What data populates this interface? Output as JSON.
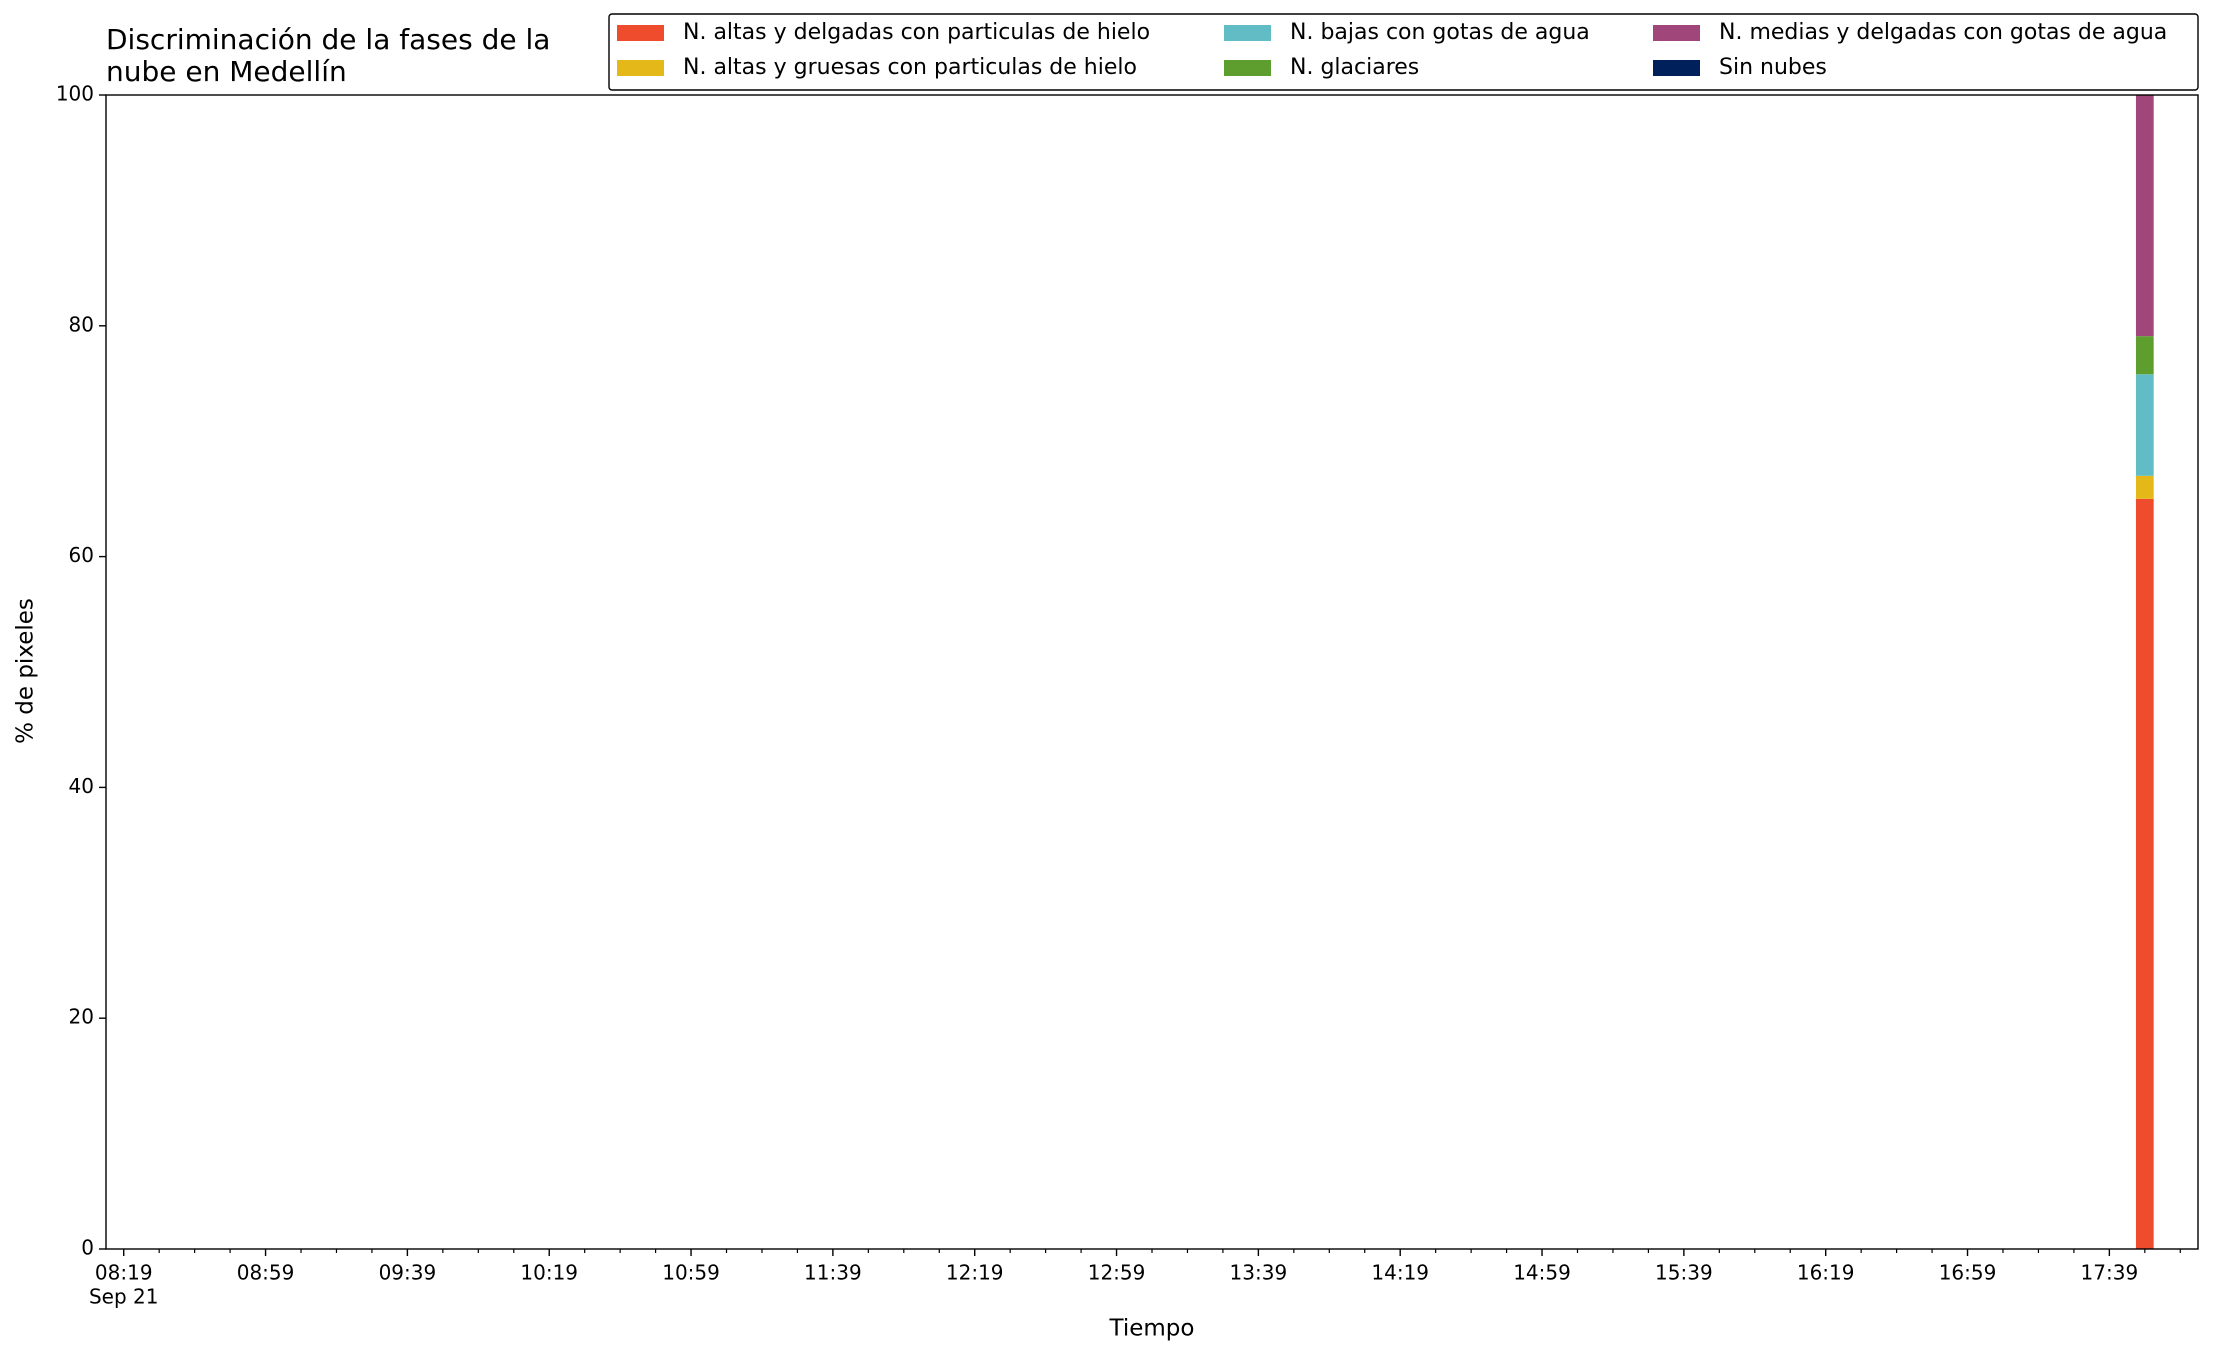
{
  "chart_data": {
    "type": "stacked_bar",
    "title": [
      "Discriminación de la fases de la",
      "nube en Medellín"
    ],
    "x_label": "Tiempo",
    "y_label": "% de pixeles",
    "x": [
      "17:49"
    ],
    "series": [
      {
        "name": "N. altas y delgadas con particulas de hielo",
        "color": "#ee4c2c",
        "values": [
          65
        ]
      },
      {
        "name": "N. altas y gruesas con particulas de hielo",
        "color": "#e5b81a",
        "values": [
          2
        ]
      },
      {
        "name": "N. bajas con gotas de agua",
        "color": "#62bcc6",
        "values": [
          8.8
        ]
      },
      {
        "name": "N. glaciares",
        "color": "#5e9e2e",
        "values": [
          3.3
        ]
      },
      {
        "name": "N. medias y delgadas con gotas de agua",
        "color": "#a0467a",
        "values": [
          20.9
        ]
      },
      {
        "name": "Sin nubes",
        "color": "#00205b",
        "values": [
          0
        ]
      }
    ],
    "xlim": [
      "08:14",
      "18:04"
    ],
    "xticks": [
      {
        "value": "08:19",
        "label": [
          "08:19",
          "Sep 21"
        ]
      },
      "08:59",
      "09:39",
      "10:19",
      "10:59",
      "11:39",
      "12:19",
      "12:59",
      "13:39",
      "14:19",
      "14:59",
      "15:39",
      "16:19",
      "16:59",
      "17:39"
    ],
    "xminorticks": [
      "08:29",
      "08:39",
      "08:49",
      "09:09",
      "09:19",
      "09:29",
      "09:49",
      "09:59",
      "10:09",
      "10:29",
      "10:39",
      "10:49",
      "11:09",
      "11:19",
      "11:29",
      "11:49",
      "11:59",
      "12:09",
      "12:29",
      "12:39",
      "12:49",
      "13:09",
      "13:19",
      "13:29",
      "13:49",
      "13:59",
      "14:09",
      "14:29",
      "14:39",
      "14:49",
      "15:09",
      "15:19",
      "15:29",
      "15:49",
      "15:59",
      "16:09",
      "16:29",
      "16:39",
      "16:49",
      "17:09",
      "17:19",
      "17:29",
      "17:49",
      "17:59"
    ],
    "ylim": [
      0,
      100
    ],
    "yticks": [
      0,
      20,
      40,
      60,
      80,
      100
    ],
    "grid": false,
    "legend": "upper right"
  }
}
